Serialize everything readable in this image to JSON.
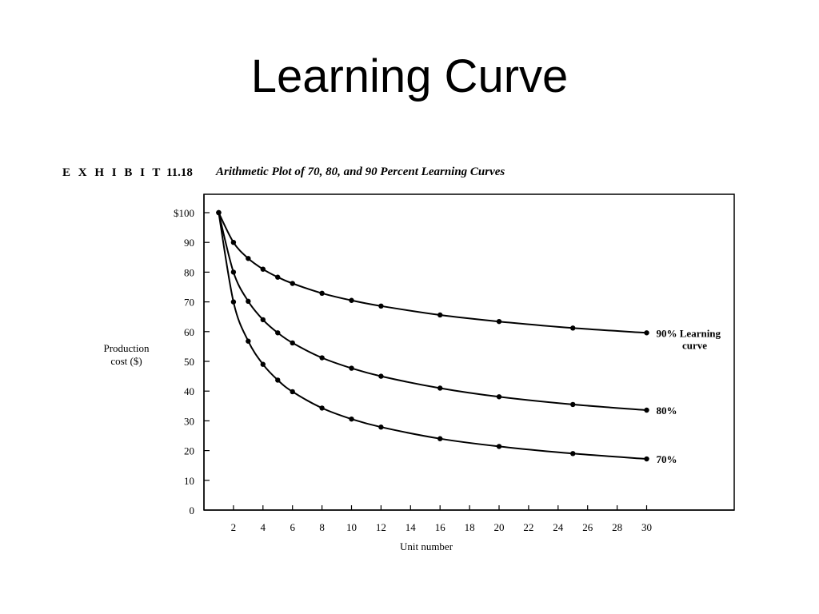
{
  "slide": {
    "title": "Learning Curve"
  },
  "exhibit": {
    "label": "E X H I B I T",
    "number": "11.18",
    "caption": "Arithmetic Plot of 70, 80, and 90 Percent Learning Curves"
  },
  "chart_data": {
    "type": "line",
    "title": "Arithmetic Plot of 70, 80, and 90 Percent Learning Curves",
    "xlabel": "Unit number",
    "ylabel": [
      "Production",
      "cost ($)"
    ],
    "xlim": [
      0,
      35
    ],
    "ylim": [
      0,
      100
    ],
    "x_ticks": [
      2,
      4,
      6,
      8,
      10,
      12,
      14,
      16,
      18,
      20,
      22,
      24,
      26,
      28,
      30
    ],
    "y_ticks": [
      0,
      10,
      20,
      30,
      40,
      50,
      60,
      70,
      80,
      90,
      100
    ],
    "y_tick_labels": [
      "0",
      "10",
      "20",
      "30",
      "40",
      "50",
      "60",
      "70",
      "80",
      "90",
      "$100"
    ],
    "grid": false,
    "legend": "end-of-line labels",
    "series": [
      {
        "name": "90% Learning curve",
        "label_lines": [
          "90% Learning",
          "curve"
        ],
        "x": [
          1,
          2,
          3,
          4,
          5,
          6,
          8,
          10,
          12,
          16,
          20,
          25,
          30
        ],
        "y": [
          100,
          90,
          84.6,
          81,
          78.3,
          76.2,
          72.9,
          70.5,
          68.6,
          65.6,
          63.4,
          61.2,
          59.6
        ]
      },
      {
        "name": "80%",
        "label_lines": [
          "80%"
        ],
        "x": [
          1,
          2,
          3,
          4,
          5,
          6,
          8,
          10,
          12,
          16,
          20,
          25,
          30
        ],
        "y": [
          100,
          80,
          70.2,
          64,
          59.6,
          56.2,
          51.2,
          47.7,
          45,
          41,
          38.1,
          35.5,
          33.6
        ]
      },
      {
        "name": "70%",
        "label_lines": [
          "70%"
        ],
        "x": [
          1,
          2,
          3,
          4,
          5,
          6,
          8,
          10,
          12,
          16,
          20,
          25,
          30
        ],
        "y": [
          100,
          70,
          56.8,
          49,
          43.7,
          39.8,
          34.3,
          30.6,
          27.9,
          24,
          21.4,
          19,
          17.2
        ]
      }
    ]
  }
}
